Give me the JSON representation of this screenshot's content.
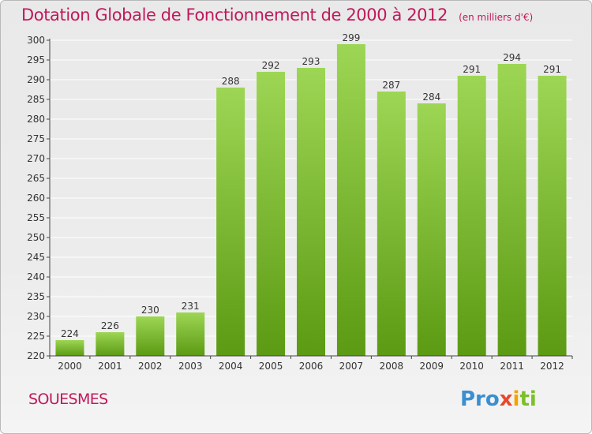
{
  "title": "Dotation Globale de Fonctionnement de 2000 à 2012",
  "unit": "(en milliers d'€)",
  "commune": "SOUESMES",
  "logo": {
    "p1": "Pro",
    "p2": "x",
    "p3": "i",
    "p4": "ti"
  },
  "colors": {
    "title": "#c0185b",
    "bar_top": "#9dd654",
    "bar_bottom": "#5c9a13",
    "axis": "#444444",
    "grid": "#ffffff"
  },
  "chart_data": {
    "type": "bar",
    "title": "Dotation Globale de Fonctionnement de 2000 à 2012",
    "xlabel": "",
    "ylabel": "",
    "categories": [
      "2000",
      "2001",
      "2002",
      "2003",
      "2004",
      "2005",
      "2006",
      "2007",
      "2008",
      "2009",
      "2010",
      "2011",
      "2012"
    ],
    "values": [
      224,
      226,
      230,
      231,
      288,
      292,
      293,
      299,
      287,
      284,
      291,
      294,
      291
    ],
    "ylim": [
      220,
      300
    ],
    "yticks": [
      220,
      225,
      230,
      235,
      240,
      245,
      250,
      255,
      260,
      265,
      270,
      275,
      280,
      285,
      290,
      295,
      300
    ],
    "grid": true,
    "legend": "none"
  }
}
